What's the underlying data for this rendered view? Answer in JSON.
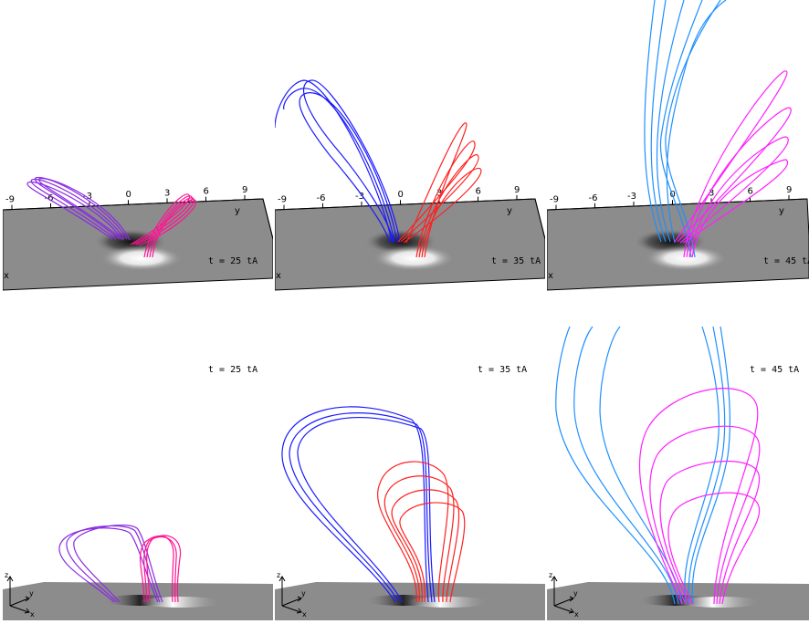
{
  "panels": [
    {
      "time_label": "t = 25 tA",
      "colors": [
        "#8a2be2",
        "#ff1493"
      ]
    },
    {
      "time_label": "t = 35 tA",
      "colors": [
        "#1a1aff",
        "#ff2020"
      ]
    },
    {
      "time_label": "t = 45 tA",
      "colors": [
        "#1e90ff",
        "#ff20ff"
      ]
    }
  ],
  "top_view": {
    "y_tick_labels": [
      "-9",
      "-6",
      "-3",
      "0",
      "3",
      "6",
      "9"
    ],
    "y_axis_label": "y",
    "x_axis_label": "x"
  },
  "side_view": {
    "axis_labels": {
      "z": "z",
      "y": "y",
      "x": "x"
    }
  }
}
